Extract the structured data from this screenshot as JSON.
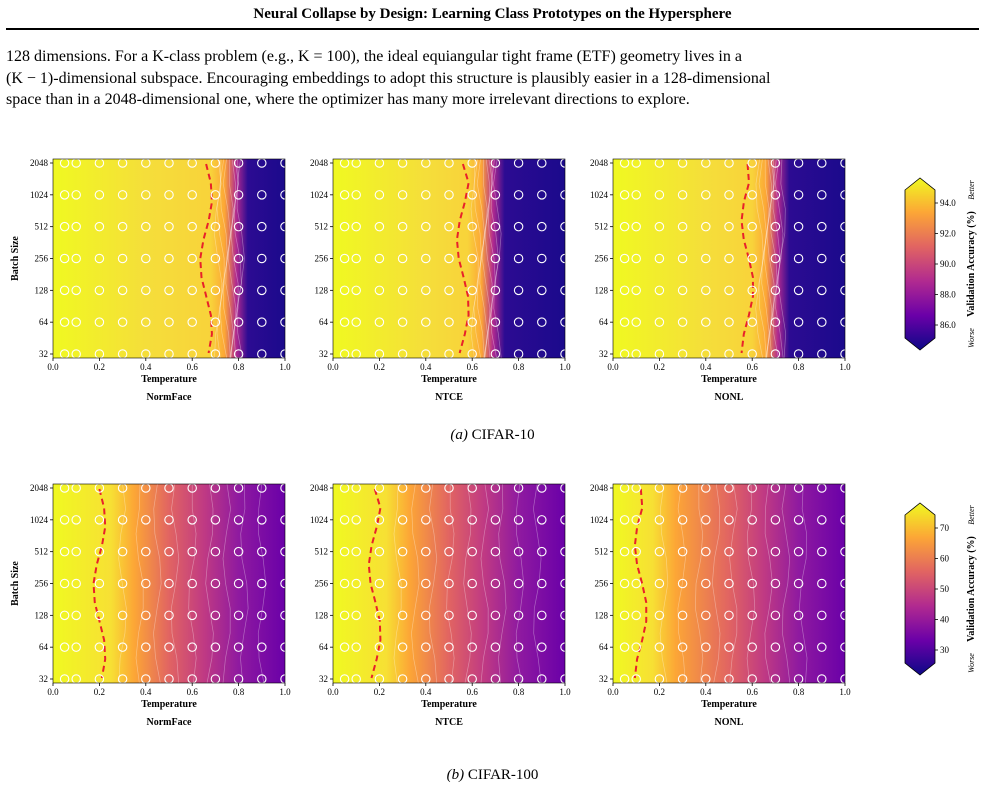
{
  "header": {
    "running_title": "Neural Collapse by Design: Learning Class Prototypes on the Hypersphere"
  },
  "body": {
    "paragraph_lines": [
      "128 dimensions. For a K-class problem (e.g., K = 100), the ideal equiangular tight frame (ETF) geometry lives in a",
      "(K − 1)-dimensional subspace. Encouraging embeddings to adopt this structure is plausibly easier in a 128-dimensional",
      "space than in a 2048-dimensional one, where the optimizer has many more irrelevant directions to explore."
    ]
  },
  "figure": {
    "subfigures": [
      {
        "caption_label": "(a)",
        "caption_text": "CIFAR-10",
        "colorbar": {
          "label": "Validation Accuracy (%)",
          "ticks": [
            "94.0",
            "92.0",
            "90.0",
            "88.0",
            "86.0"
          ],
          "better": "Better",
          "worse": "Worse"
        }
      },
      {
        "caption_label": "(b)",
        "caption_text": "CIFAR-100",
        "colorbar": {
          "label": "Validation Accuracy (%)",
          "ticks": [
            "70",
            "60",
            "50",
            "40",
            "30"
          ],
          "better": "Better",
          "worse": "Worse"
        }
      }
    ],
    "panel_titles": [
      "NormFace",
      "NTCE",
      "NONL"
    ],
    "colormap": [
      "#0d0887",
      "#6a00a8",
      "#b12a90",
      "#e16462",
      "#fca636",
      "#f0f921"
    ]
  },
  "chart_data": [
    {
      "type": "heatmap",
      "subfigure": "CIFAR-10",
      "panels": [
        "NormFace",
        "NTCE",
        "NONL"
      ],
      "xlabel": "Temperature",
      "ylabel": "Batch Size",
      "x_ticks": [
        "0.0",
        "0.2",
        "0.4",
        "0.6",
        "0.8",
        "1.0"
      ],
      "y_ticks": [
        "32",
        "64",
        "128",
        "256",
        "512",
        "1024",
        "2048"
      ],
      "x_samples": [
        0.05,
        0.1,
        0.2,
        0.3,
        0.4,
        0.5,
        0.6,
        0.7,
        0.8,
        0.9,
        1.0
      ],
      "y_samples": [
        32,
        64,
        128,
        256,
        512,
        1024,
        2048
      ],
      "colorbar_label": "Validation Accuracy (%)",
      "colorbar_ticks": [
        94.0,
        92.0,
        90.0,
        88.0,
        86.0
      ],
      "high_accuracy_boundary_temperature": [
        0.76,
        0.66,
        0.68
      ]
    },
    {
      "type": "heatmap",
      "subfigure": "CIFAR-100",
      "panels": [
        "NormFace",
        "NTCE",
        "NONL"
      ],
      "xlabel": "Temperature",
      "ylabel": "Batch Size",
      "x_ticks": [
        "0.0",
        "0.2",
        "0.4",
        "0.6",
        "0.8",
        "1.0"
      ],
      "y_ticks": [
        "32",
        "64",
        "128",
        "256",
        "512",
        "1024",
        "2048"
      ],
      "x_samples": [
        0.05,
        0.1,
        0.2,
        0.3,
        0.4,
        0.5,
        0.6,
        0.7,
        0.8,
        0.9,
        1.0
      ],
      "y_samples": [
        32,
        64,
        128,
        256,
        512,
        1024,
        2048
      ],
      "colorbar_label": "Validation Accuracy (%)",
      "colorbar_ticks": [
        70,
        60,
        50,
        40,
        30
      ],
      "high_accuracy_boundary_temperature": [
        0.3,
        0.28,
        0.22
      ]
    }
  ]
}
